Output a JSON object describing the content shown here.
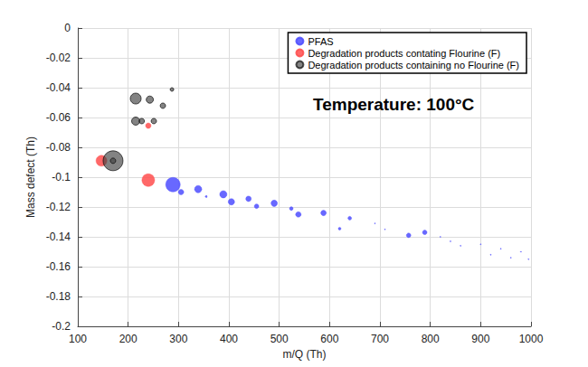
{
  "chart_data": {
    "type": "scatter",
    "annotation": "Temperature: 100°C",
    "x_label": "m/Q (Th)",
    "y_label": "Mass defect (Th)",
    "xlim": [
      100,
      1000
    ],
    "xticks": [
      100,
      200,
      300,
      400,
      500,
      600,
      700,
      800,
      900,
      1000
    ],
    "ylim": [
      -0.2,
      0
    ],
    "yticks": [
      -0.2,
      -0.18,
      -0.16,
      -0.14,
      -0.12,
      -0.1,
      -0.08,
      -0.06,
      -0.04,
      -0.02,
      0
    ],
    "grid": true,
    "legend": "upper right",
    "marker": "circle",
    "series": [
      {
        "name": "PFAS",
        "color": "#4d4dff",
        "x": [
          289,
          305,
          339,
          355,
          389,
          405,
          439,
          455,
          490,
          524,
          538,
          588,
          620,
          640,
          690,
          710,
          757,
          789,
          820,
          840,
          860,
          900,
          920,
          940,
          960,
          980,
          995
        ],
        "values": [
          -0.105,
          -0.11,
          -0.108,
          -0.113,
          -0.1115,
          -0.1165,
          -0.1145,
          -0.1195,
          -0.1175,
          -0.121,
          -0.125,
          -0.124,
          -0.1345,
          -0.1275,
          -0.131,
          -0.135,
          -0.139,
          -0.137,
          -0.14,
          -0.143,
          -0.146,
          -0.145,
          -0.152,
          -0.148,
          -0.154,
          -0.15,
          -0.155
        ],
        "sizes": [
          8,
          3,
          4,
          1,
          4,
          3.5,
          3,
          2.5,
          3.5,
          2,
          3,
          3,
          1.5,
          2,
          0.5,
          0.5,
          2.5,
          2.5,
          0.5,
          0.5,
          0.5,
          0.5,
          0.5,
          0.5,
          0.5,
          0.5,
          0.5
        ]
      },
      {
        "name": "Degradation products contating Flourine (F)",
        "color": "#ff4d4d",
        "x": [
          147,
          240,
          240
        ],
        "values": [
          -0.089,
          -0.102,
          -0.0655
        ],
        "sizes": [
          6,
          7,
          3
        ]
      },
      {
        "name": "Degradation products containing no Flourine (F)",
        "color": "#404040",
        "x": [
          170,
          170,
          215,
          243,
          287,
          269,
          215,
          227,
          251
        ],
        "values": [
          -0.089,
          -0.089,
          -0.0473,
          -0.048,
          -0.0412,
          -0.0521,
          -0.0624,
          -0.0624,
          -0.0624
        ],
        "sizes": [
          11,
          3,
          6,
          4,
          2,
          3,
          4.5,
          3,
          3
        ]
      }
    ]
  }
}
